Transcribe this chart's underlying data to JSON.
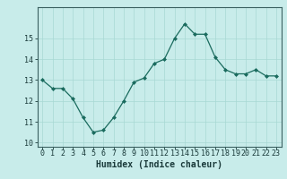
{
  "x": [
    0,
    1,
    2,
    3,
    4,
    5,
    6,
    7,
    8,
    9,
    10,
    11,
    12,
    13,
    14,
    15,
    16,
    17,
    18,
    19,
    20,
    21,
    22,
    23
  ],
  "y": [
    13.0,
    12.6,
    12.6,
    12.1,
    11.2,
    10.5,
    10.6,
    11.2,
    12.0,
    12.9,
    13.1,
    13.8,
    14.0,
    15.0,
    15.7,
    15.2,
    15.2,
    14.1,
    13.5,
    13.3,
    13.3,
    13.5,
    13.2,
    13.2
  ],
  "xlabel": "Humidex (Indice chaleur)",
  "xlim": [
    -0.5,
    23.5
  ],
  "ylim": [
    9.8,
    16.5
  ],
  "yticks": [
    10,
    11,
    12,
    13,
    14,
    15
  ],
  "xticks": [
    0,
    1,
    2,
    3,
    4,
    5,
    6,
    7,
    8,
    9,
    10,
    11,
    12,
    13,
    14,
    15,
    16,
    17,
    18,
    19,
    20,
    21,
    22,
    23
  ],
  "line_color": "#1a6b5e",
  "marker_color": "#1a6b5e",
  "bg_color": "#c8ecea",
  "grid_color": "#a8d8d4",
  "xlabel_fontsize": 7,
  "tick_fontsize": 6
}
